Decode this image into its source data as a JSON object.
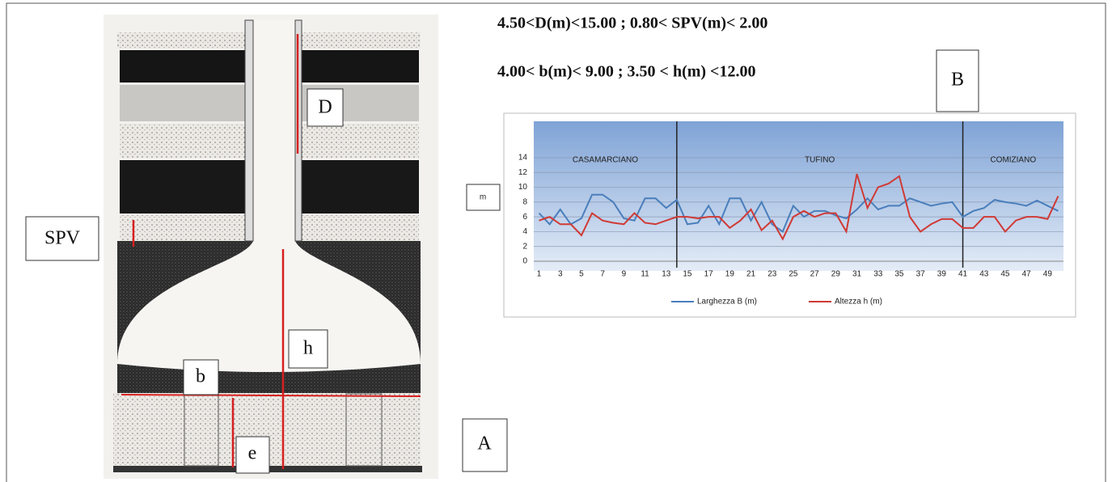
{
  "figure": {
    "constraints": [
      "4.50<D(m)<15.00 ;  0.80< SPV(m)< 2.00",
      "4.00< b(m)< 9.00 ;  3.50 < h(m) <12.00"
    ],
    "labels": [
      "SPV",
      "D",
      "h",
      "b",
      "e",
      "A",
      "B"
    ]
  },
  "chart_data": {
    "type": "line",
    "ylabel": "m",
    "x": [
      1,
      2,
      3,
      4,
      5,
      6,
      7,
      8,
      9,
      10,
      11,
      12,
      13,
      14,
      15,
      16,
      17,
      18,
      19,
      20,
      21,
      22,
      23,
      24,
      25,
      26,
      27,
      28,
      29,
      30,
      31,
      32,
      33,
      34,
      35,
      36,
      37,
      38,
      39,
      40,
      41,
      42,
      43,
      44,
      45,
      46,
      47,
      48,
      49,
      50
    ],
    "series": [
      {
        "name": "Larghezza  B (m)",
        "color": "#4a7ebb",
        "values": [
          6.5,
          5,
          7,
          5,
          5.8,
          9,
          9,
          8,
          5.8,
          5.5,
          8.5,
          8.5,
          7.2,
          8.3,
          5,
          5.2,
          7.5,
          5,
          8.5,
          8.5,
          5.5,
          8,
          5,
          4,
          7.5,
          6,
          6.8,
          6.8,
          6.2,
          5.8,
          7,
          8.5,
          7,
          7.5,
          7.5,
          8.5,
          8,
          7.5,
          7.8,
          8,
          6,
          6.8,
          7.2,
          8.3,
          8,
          7.8,
          7.5,
          8.2,
          7.5,
          6.8
        ]
      },
      {
        "name": "Altezza  h (m)",
        "color": "#d03a35",
        "values": [
          5.5,
          6,
          5,
          5,
          3.5,
          6.5,
          5.5,
          5.2,
          5,
          6.5,
          5.2,
          5,
          5.5,
          6,
          6,
          5.8,
          6,
          6,
          4.5,
          5.5,
          7,
          4.2,
          5.5,
          3,
          6,
          6.8,
          6,
          6.5,
          6.5,
          4,
          11.8,
          7.2,
          10,
          10.5,
          11.5,
          6,
          4,
          5,
          5.7,
          5.7,
          4.5,
          4.5,
          6,
          6,
          4,
          5.5,
          6,
          6,
          5.7,
          8.8
        ]
      }
    ],
    "xlim": [
      0.5,
      50.5
    ],
    "ylim": [
      0,
      14
    ],
    "xticks": [
      1,
      3,
      5,
      7,
      9,
      11,
      13,
      15,
      17,
      19,
      21,
      23,
      25,
      27,
      29,
      31,
      33,
      35,
      37,
      39,
      41,
      43,
      45,
      47,
      49
    ],
    "yticks": [
      0,
      2,
      4,
      6,
      8,
      10,
      12,
      14
    ],
    "grid": true,
    "dividers": [
      14,
      41
    ],
    "region_labels": [
      "CASAMARCIANO",
      "TUFINO",
      "COMIZIANO"
    ]
  }
}
